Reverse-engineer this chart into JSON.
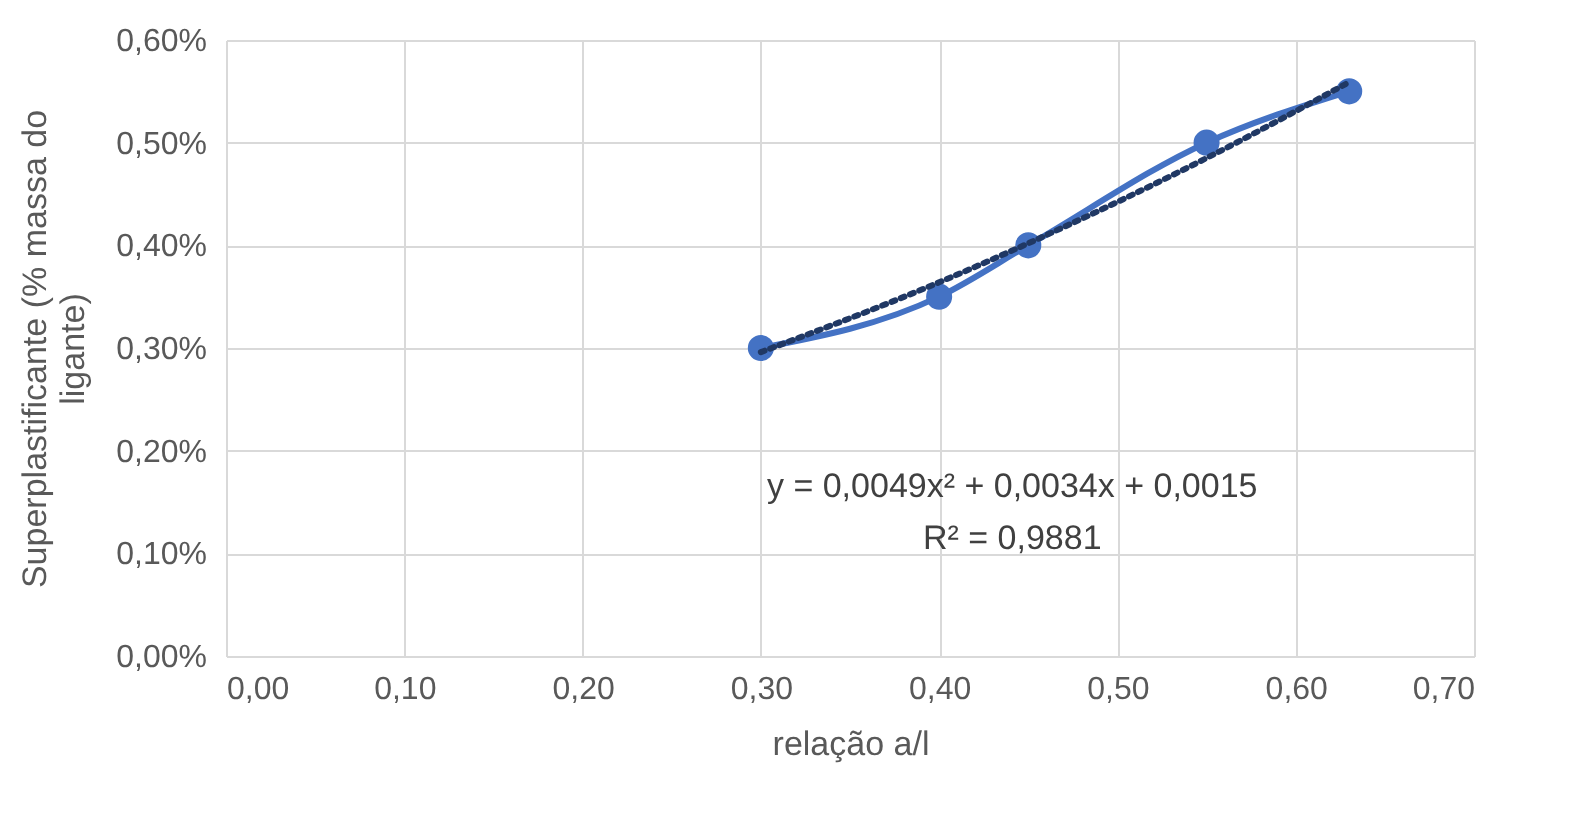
{
  "chart_data": {
    "type": "line",
    "xlabel": "relação a/l",
    "ylabel": "Superplastificante (% massa do ligante)",
    "x": [
      0.3,
      0.4,
      0.45,
      0.55,
      0.63
    ],
    "series": [
      {
        "color": "#4472c4",
        "values": [
          0.3,
          0.35,
          0.4,
          0.5,
          0.55
        ],
        "marker": "circle",
        "line_style": "solid"
      },
      {
        "color": "#203864",
        "values": [
          0.296,
          0.364,
          0.402,
          0.485,
          0.559
        ],
        "marker": "none",
        "line_style": "dotted"
      }
    ],
    "xlim": [
      0,
      0.7
    ],
    "xticks": [
      {
        "value": 0,
        "label": "0,00"
      },
      {
        "value": 0.1,
        "label": "0,10"
      },
      {
        "value": 0.2,
        "label": "0,20"
      },
      {
        "value": 0.3,
        "label": "0,30"
      },
      {
        "value": 0.4,
        "label": "0,40"
      },
      {
        "value": 0.5,
        "label": "0,50"
      },
      {
        "value": 0.6,
        "label": "0,60"
      },
      {
        "value": 0.7,
        "label": "0,70"
      }
    ],
    "ylim": [
      0,
      0.6
    ],
    "yticks": [
      {
        "value": 0,
        "label": "0,00%"
      },
      {
        "value": 0.1,
        "label": "0,10%"
      },
      {
        "value": 0.2,
        "label": "0,20%"
      },
      {
        "value": 0.3,
        "label": "0,30%"
      },
      {
        "value": 0.4,
        "label": "0,40%"
      },
      {
        "value": 0.5,
        "label": "0,50%"
      },
      {
        "value": 0.6,
        "label": "0,60%"
      }
    ],
    "grid": true,
    "annotations": [
      "y = 0,0049x² + 0,0034x + 0,0015",
      "R² = 0,9881"
    ]
  }
}
